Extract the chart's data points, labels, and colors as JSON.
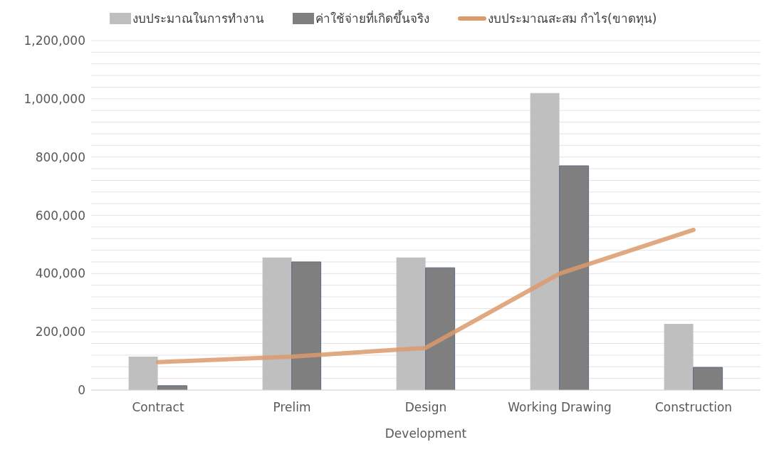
{
  "chart_data": {
    "type": "bar",
    "categories": [
      "Contract",
      "Prelim",
      "Design Development",
      "Working Drawing",
      "Construction"
    ],
    "series": [
      {
        "name": "งบประมาณในการทำงาน",
        "color": "#bfbfbf",
        "values": [
          115000,
          455000,
          455000,
          1020000,
          227000
        ]
      },
      {
        "name": "ค่าใช้จ่ายที่เกิดขึ้นจริง",
        "color": "#7f7f7f",
        "values": [
          15000,
          440000,
          420000,
          770000,
          78000
        ]
      },
      {
        "name": "งบประมาณสะสม กำไร(ขาดทุน)",
        "type": "line",
        "color": "#dc9a6c",
        "values": [
          96000,
          115000,
          145000,
          400000,
          550000
        ]
      }
    ],
    "ylim": [
      0,
      1200000
    ],
    "yticks": [
      0,
      {
        "value": 40000,
        "label": null
      },
      {
        "value": 80000,
        "label": null
      },
      {
        "value": 120000,
        "label": null
      },
      {
        "value": 160000,
        "label": null
      },
      {
        "value": 200000,
        "label": "200,000"
      },
      {
        "value": 240000,
        "label": null
      },
      {
        "value": 280000,
        "label": null
      },
      {
        "value": 320000,
        "label": null
      },
      {
        "value": 360000,
        "label": null
      },
      {
        "value": 400000,
        "label": "400,000"
      },
      {
        "value": 440000,
        "label": null
      },
      {
        "value": 480000,
        "label": null
      },
      {
        "value": 520000,
        "label": null
      },
      {
        "value": 560000,
        "label": null
      },
      {
        "value": 600000,
        "label": "600,000"
      },
      {
        "value": 640000,
        "label": null
      },
      {
        "value": 680000,
        "label": null
      },
      {
        "value": 720000,
        "label": null
      },
      {
        "value": 760000,
        "label": null
      },
      {
        "value": 800000,
        "label": "800,000"
      },
      {
        "value": 840000,
        "label": null
      },
      {
        "value": 880000,
        "label": null
      },
      {
        "value": 920000,
        "label": null
      },
      {
        "value": 960000,
        "label": null
      },
      {
        "value": 1000000,
        "label": "1,000,000"
      },
      {
        "value": 1040000,
        "label": null
      },
      {
        "value": 1080000,
        "label": null
      },
      {
        "value": 1120000,
        "label": null
      },
      {
        "value": 1160000,
        "label": null
      },
      {
        "value": 1200000,
        "label": "1,200,000"
      }
    ],
    "grid": "y",
    "legend": "top",
    "marker": "none"
  }
}
